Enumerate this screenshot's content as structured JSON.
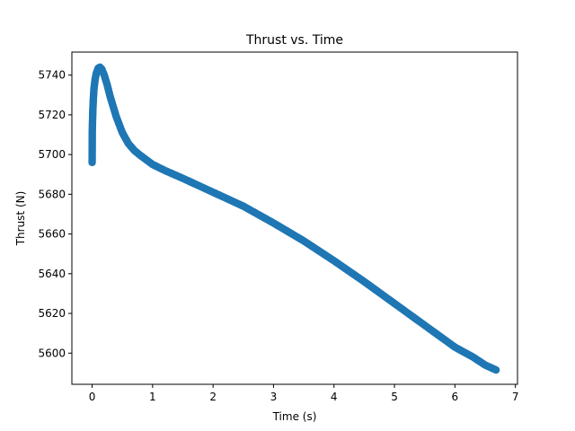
{
  "chart_data": {
    "type": "scatter",
    "title": "Thrust vs. Time",
    "xlabel": "Time (s)",
    "ylabel": "Thrust (N)",
    "xlim": [
      -0.335,
      7.035
    ],
    "ylim": [
      5584.3,
      5751.6
    ],
    "xticks": [
      0,
      1,
      2,
      3,
      4,
      5,
      6,
      7
    ],
    "yticks": [
      5600,
      5620,
      5640,
      5660,
      5680,
      5700,
      5720,
      5740
    ],
    "grid": false,
    "marker_color": "#1f77b4",
    "series": [
      {
        "name": "Thrust",
        "key_points": [
          [
            0.0,
            5696
          ],
          [
            0.002,
            5711
          ],
          [
            0.01,
            5721
          ],
          [
            0.02,
            5728
          ],
          [
            0.03,
            5733
          ],
          [
            0.05,
            5738
          ],
          [
            0.07,
            5741
          ],
          [
            0.1,
            5743.5
          ],
          [
            0.13,
            5744
          ],
          [
            0.16,
            5743
          ],
          [
            0.2,
            5740
          ],
          [
            0.25,
            5735
          ],
          [
            0.3,
            5729
          ],
          [
            0.4,
            5719
          ],
          [
            0.5,
            5711
          ],
          [
            0.6,
            5705.5
          ],
          [
            0.7,
            5702
          ],
          [
            0.8,
            5699.5
          ],
          [
            1.0,
            5695
          ],
          [
            1.2,
            5692
          ],
          [
            1.5,
            5688
          ],
          [
            2.0,
            5681
          ],
          [
            2.5,
            5674
          ],
          [
            3.0,
            5665.5
          ],
          [
            3.5,
            5656.5
          ],
          [
            4.0,
            5646.5
          ],
          [
            4.5,
            5636
          ],
          [
            5.0,
            5625
          ],
          [
            5.5,
            5614
          ],
          [
            6.0,
            5603
          ],
          [
            6.3,
            5598
          ],
          [
            6.5,
            5594
          ],
          [
            6.68,
            5591.5
          ]
        ]
      }
    ]
  }
}
